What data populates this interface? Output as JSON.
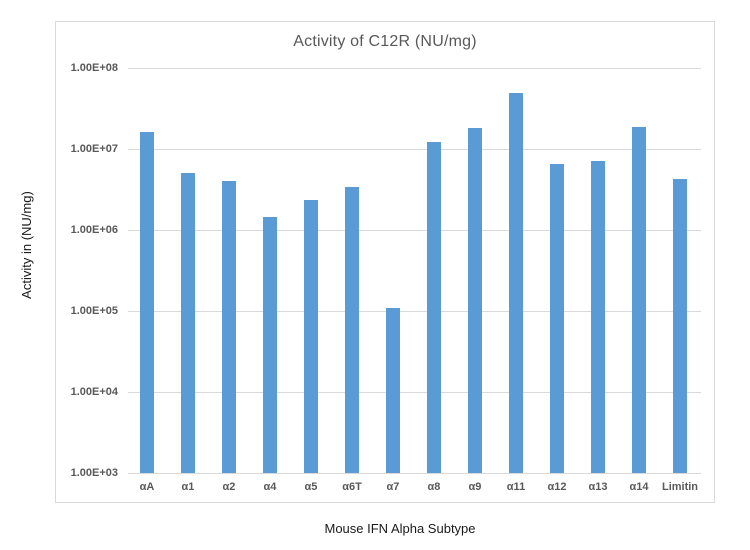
{
  "chart_data": {
    "type": "bar",
    "title": "Activity of C12R (NU/mg)",
    "xlabel": "Mouse IFN Alpha Subtype",
    "ylabel": "Activity in (NU/mg)",
    "categories": [
      "αA",
      "α1",
      "α2",
      "α4",
      "α5",
      "α6T",
      "α7",
      "α8",
      "α9",
      "α11",
      "α12",
      "α13",
      "α14",
      "Limitin"
    ],
    "values": [
      16000000,
      5000000,
      4000000,
      1450000,
      2300000,
      3400000,
      110000,
      12000000,
      18000000,
      48000000,
      6500000,
      7000000,
      18500000,
      4200000
    ],
    "y_axis": {
      "scale": "log",
      "min": 1000,
      "max": 100000000,
      "tick_labels": [
        "1.00E+08",
        "1.00E+07",
        "1.00E+06",
        "1.00E+05",
        "1.00E+04",
        "1.00E+03"
      ]
    },
    "grid": true,
    "legend": false,
    "colors": {
      "bar": "#5b9bd5",
      "gridline": "#d9d9d9",
      "chart_border": "#d9d9d9",
      "title_text": "#595959",
      "tick_text": "#595959",
      "axis_title_text": "#1a1a1a",
      "background": "#ffffff"
    }
  }
}
